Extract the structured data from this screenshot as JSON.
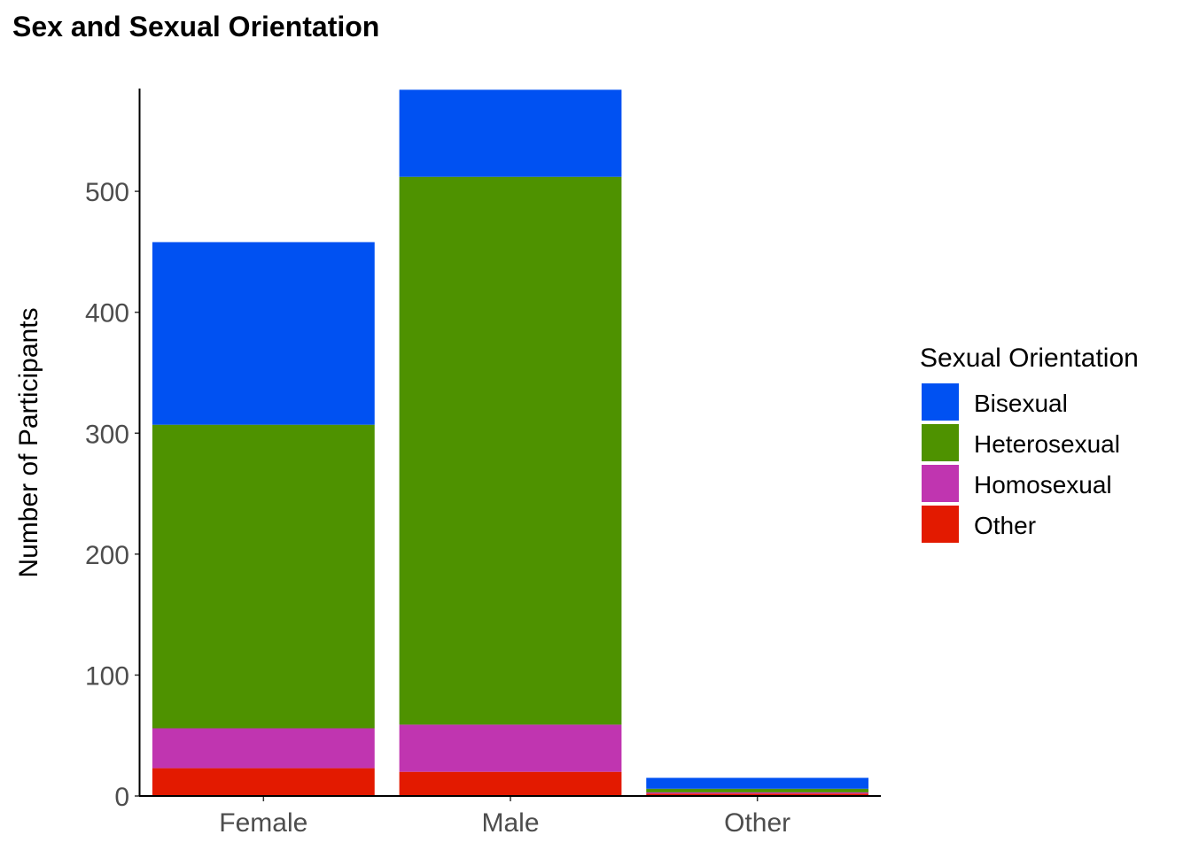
{
  "chart_data": {
    "type": "bar",
    "stacked": true,
    "title": "Sex and Sexual Orientation",
    "xlabel": "",
    "ylabel": "Number of Participants",
    "categories": [
      "Female",
      "Male",
      "Other"
    ],
    "y_ticks": [
      0,
      100,
      200,
      300,
      400,
      500
    ],
    "ylim": [
      0,
      585
    ],
    "grid": false,
    "legend": {
      "title": "Sexual Orientation",
      "position": "right"
    },
    "series": [
      {
        "name": "Other",
        "color": "#e31a00",
        "values": [
          23,
          20,
          2
        ]
      },
      {
        "name": "Homosexual",
        "color": "#c035b0",
        "values": [
          33,
          39,
          1
        ]
      },
      {
        "name": "Heterosexual",
        "color": "#4e9200",
        "values": [
          251,
          453,
          3
        ]
      },
      {
        "name": "Bisexual",
        "color": "#0051f2",
        "values": [
          151,
          72,
          9
        ]
      }
    ],
    "legend_order": [
      "Bisexual",
      "Heterosexual",
      "Homosexual",
      "Other"
    ]
  }
}
